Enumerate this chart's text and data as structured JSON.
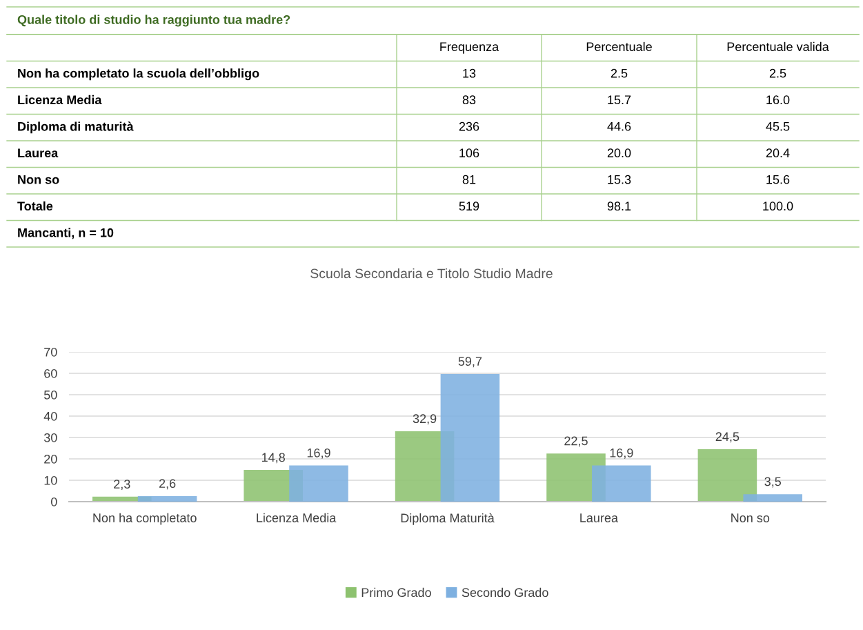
{
  "chart_data": [
    {
      "type": "other",
      "title": "Quale titolo di studio ha raggiunto tua madre?",
      "categories": [
        "Frequenza",
        "Percentuale",
        "Percentuale valida"
      ],
      "y_categories": [
        "Non ha completato la scuola dell’obbligo",
        "Licenza Media",
        "Diploma di maturità",
        "Laurea",
        "Non so",
        "Totale"
      ],
      "cell_labels": [
        [
          "13",
          "2.5",
          "2.5"
        ],
        [
          "83",
          "15.7",
          "16.0"
        ],
        [
          "236",
          "44.6",
          "45.5"
        ],
        [
          "106",
          "20.0",
          "20.4"
        ],
        [
          "81",
          "15.3",
          "15.6"
        ],
        [
          "519",
          "98.1",
          "100.0"
        ]
      ],
      "annotations": [
        "Mancanti, n = 10"
      ]
    },
    {
      "type": "bar",
      "title": "Scuola Secondaria e Titolo Studio Madre",
      "categories": [
        "Non ha completato",
        "Licenza Media",
        "Diploma Maturità",
        "Laurea",
        "Non so"
      ],
      "series": [
        {
          "name": "Primo Grado",
          "color": "#8dc26f",
          "values": [
            2.3,
            14.8,
            32.9,
            22.5,
            24.5
          ],
          "value_labels": [
            "2,3",
            "14,8",
            "32,9",
            "22,5",
            "24,5"
          ]
        },
        {
          "name": "Secondo Grado",
          "color": "#7eb0e0",
          "values": [
            2.6,
            16.9,
            59.7,
            16.9,
            3.5
          ],
          "value_labels": [
            "2,6",
            "16,9",
            "59,7",
            "16,9",
            "3,5"
          ]
        }
      ],
      "ylim": [
        0,
        70
      ],
      "yticks": [
        0,
        10,
        20,
        30,
        40,
        50,
        60,
        70
      ],
      "grid": "y",
      "legend": "bottom"
    }
  ]
}
